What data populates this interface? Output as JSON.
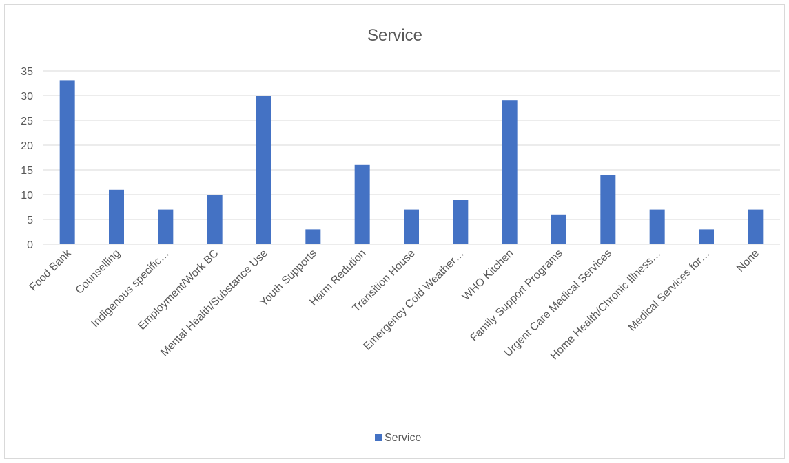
{
  "chart_data": {
    "type": "bar",
    "title": "Service",
    "xlabel": "",
    "ylabel": "",
    "ylim": [
      0,
      35
    ],
    "yticks": [
      0,
      5,
      10,
      15,
      20,
      25,
      30,
      35
    ],
    "grid": true,
    "legend_position": "bottom",
    "categories": [
      "Food Bank",
      "Counselling",
      "Indigenous specific…",
      "Employment/Work BC",
      "Mental Health/Substance Use",
      "Youth Supports",
      "Harm Redution",
      "Transition House",
      "Emergency Cold Weather…",
      "WHO Kitchen",
      "Family Support Programs",
      "Urgent Care Medical Services",
      "Home Health/Chronic Illness…",
      "Medical Services for…",
      "None"
    ],
    "series": [
      {
        "name": "Service",
        "color": "#4472c4",
        "values": [
          33,
          11,
          7,
          10,
          30,
          3,
          16,
          7,
          9,
          29,
          6,
          14,
          7,
          3,
          7
        ]
      }
    ]
  }
}
